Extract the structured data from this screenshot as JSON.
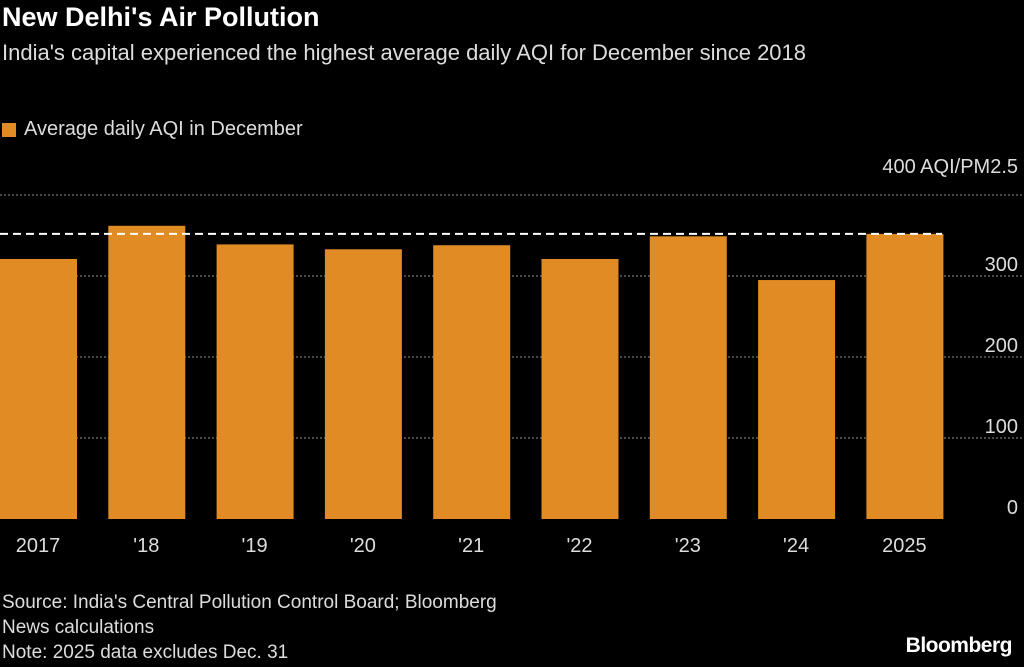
{
  "title": "New Delhi's Air Pollution",
  "subtitle": "India's capital experienced the highest average daily AQI for December since 2018",
  "source_lines": [
    "Source: India's Central Pollution Control Board; Bloomberg",
    "News calculations",
    "Note: 2025 data excludes Dec. 31"
  ],
  "brand": "Bloomberg",
  "chart_data": {
    "type": "bar",
    "title": "New Delhi's Air Pollution",
    "categories": [
      "2017",
      "'18",
      "'19",
      "'20",
      "'21",
      "'22",
      "'23",
      "'24",
      "2025"
    ],
    "series": [
      {
        "name": "Average daily AQI in December",
        "values": [
          321,
          362,
          339,
          333,
          338,
          321,
          349,
          295,
          352
        ],
        "color": "#e08b24"
      }
    ],
    "ylabel": "AQI/PM2.5",
    "unit_label": "400 AQI/PM2.5",
    "ylim": [
      0,
      400
    ],
    "yticks": [
      0,
      100,
      200,
      300,
      400
    ],
    "ytick_labels": [
      "0",
      "100",
      "200",
      "300"
    ],
    "reference_line": {
      "value": 352,
      "style": "dashed",
      "color": "#ffffff"
    },
    "grid": true,
    "legend": "top-left"
  }
}
